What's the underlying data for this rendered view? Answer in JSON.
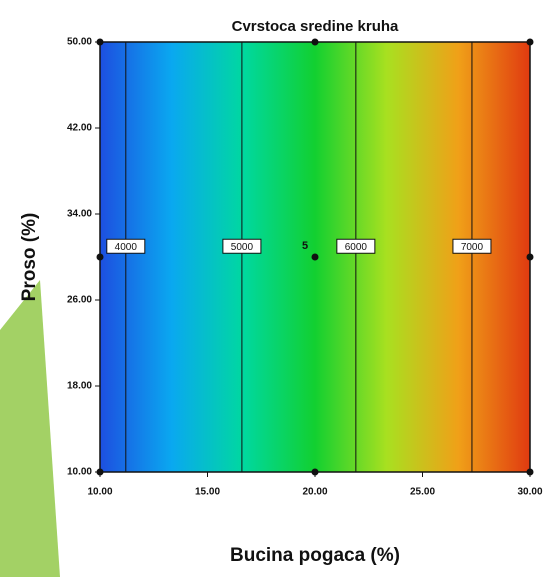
{
  "chart_data": {
    "type": "contour",
    "title": "Cvrstoca sredine kruha",
    "x_label": "Bucina pogaca (%)",
    "y_label": "Proso (%)",
    "xlim": [
      10,
      30
    ],
    "ylim": [
      10,
      50
    ],
    "xticks": [
      {
        "value": 10,
        "label": "10.00"
      },
      {
        "value": 15,
        "label": "15.00"
      },
      {
        "value": 20,
        "label": "20.00"
      },
      {
        "value": 25,
        "label": "25.00"
      },
      {
        "value": 30,
        "label": "30.00"
      }
    ],
    "yticks": [
      {
        "value": 10,
        "label": "10.00"
      },
      {
        "value": 18,
        "label": "18.00"
      },
      {
        "value": 26,
        "label": "26.00"
      },
      {
        "value": 34,
        "label": "34.00"
      },
      {
        "value": 42,
        "label": "42.00"
      },
      {
        "value": 50,
        "label": "50.00"
      }
    ],
    "colorscale": [
      "#1d4fe0",
      "#0aa8f0",
      "#00d8a0",
      "#12d030",
      "#a8e020",
      "#f0a018",
      "#e03a10"
    ],
    "contours": [
      {
        "value": 4000,
        "x": 11.2
      },
      {
        "value": 5000,
        "x": 16.6
      },
      {
        "value": 6000,
        "x": 21.9
      },
      {
        "value": 7000,
        "x": 27.3
      }
    ],
    "contour_label_y": 31,
    "design_points": {
      "x": [
        10,
        20,
        30,
        10,
        30,
        10,
        20,
        30,
        20
      ],
      "y": [
        10,
        10,
        10,
        30,
        30,
        50,
        50,
        50,
        30
      ]
    },
    "center_label": "5"
  }
}
